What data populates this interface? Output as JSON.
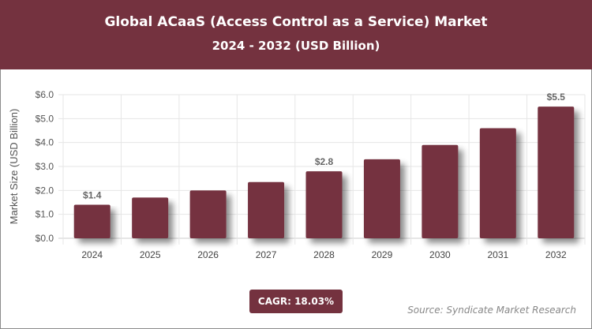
{
  "header": {
    "title": "Global ACaaS (Access Control as a Service) Market",
    "subtitle": "2024 - 2032 (USD Billion)"
  },
  "cagr": "CAGR: 18.03%",
  "source": "Source: Syndicate Market Research",
  "colors": {
    "bar": "#74323f",
    "header": "#74323f"
  },
  "chart_data": {
    "type": "bar",
    "title": "Global ACaaS (Access Control as a Service) Market",
    "subtitle": "2024 - 2032 (USD Billion)",
    "xlabel": "",
    "ylabel": "Market Size (USD Billion)",
    "categories": [
      "2024",
      "2025",
      "2026",
      "2027",
      "2028",
      "2029",
      "2030",
      "2031",
      "2032"
    ],
    "values": [
      1.4,
      1.7,
      2.0,
      2.35,
      2.8,
      3.3,
      3.9,
      4.6,
      5.5
    ],
    "data_labels": {
      "0": "$1.4",
      "4": "$2.8",
      "8": "$5.5"
    },
    "yticks": [
      "$0.0",
      "$1.0",
      "$2.0",
      "$3.0",
      "$4.0",
      "$5.0",
      "$6.0"
    ],
    "ylim": [
      0,
      6
    ],
    "grid": true
  }
}
